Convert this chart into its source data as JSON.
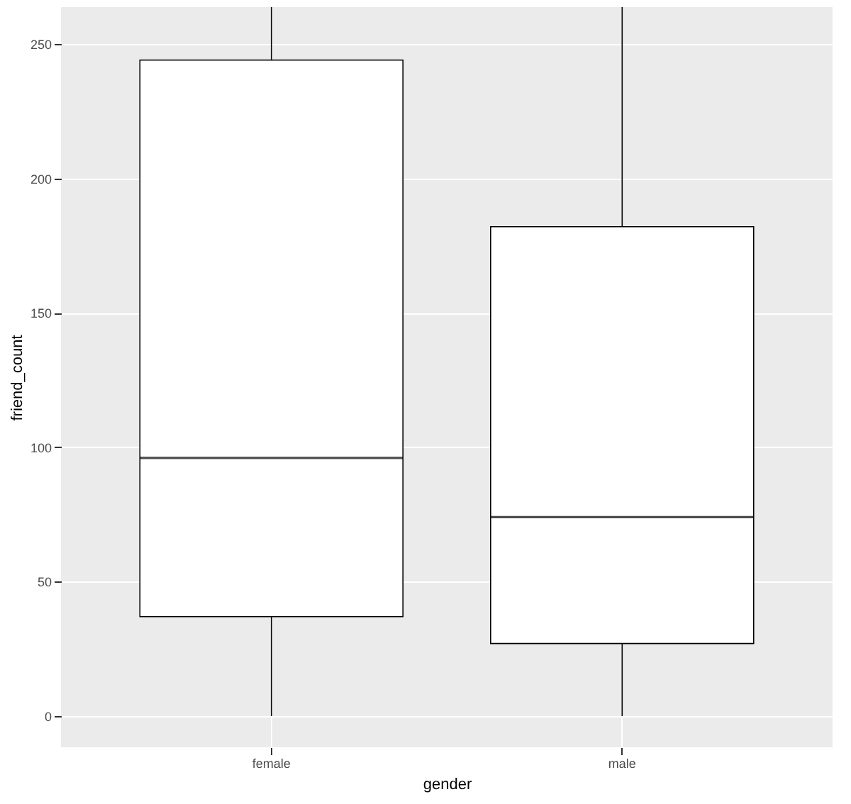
{
  "chart_data": {
    "type": "box",
    "xlabel": "gender",
    "ylabel": "friend_count",
    "categories": [
      "female",
      "male"
    ],
    "boxes": [
      {
        "low": 0,
        "q1": 37,
        "median": 96,
        "q3": 244,
        "high": 263.7
      },
      {
        "low": 0,
        "q1": 27,
        "median": 74,
        "q3": 182,
        "high": 263.7
      }
    ],
    "ylim": [
      -11.6,
      263.7
    ],
    "yticks": [
      0,
      50,
      100,
      150,
      200,
      250
    ],
    "grid": true
  }
}
